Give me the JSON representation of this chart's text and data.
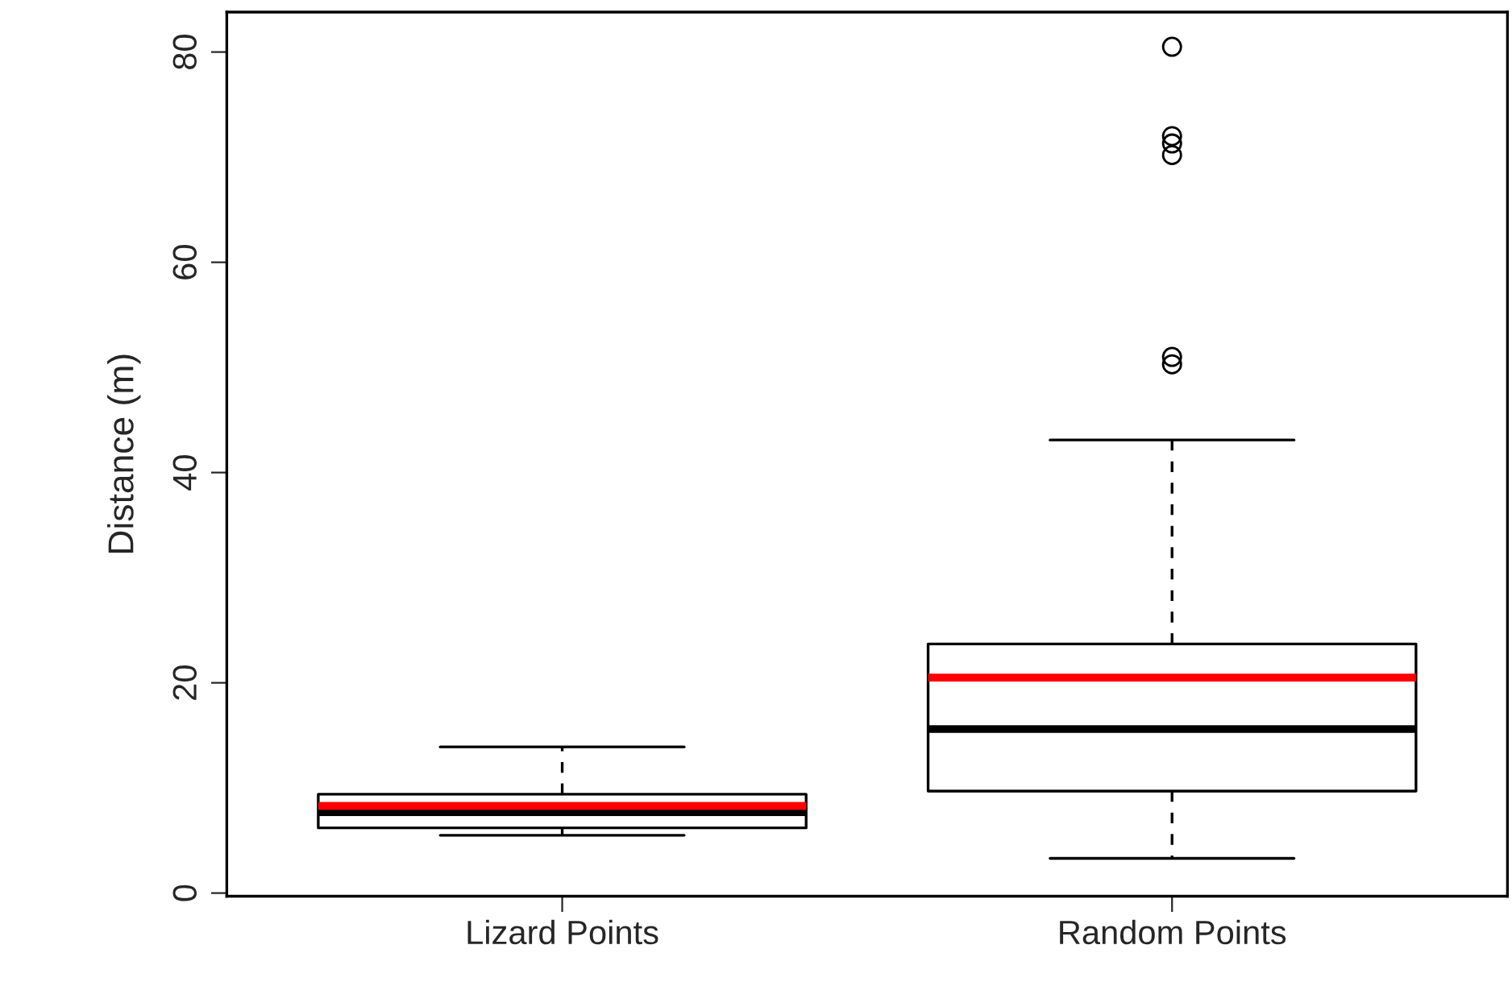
{
  "chart_data": {
    "type": "box",
    "ylabel": "Distance (m)",
    "categories": [
      "Lizard Points",
      "Random Points"
    ],
    "boxes": [
      {
        "low": 5.5,
        "q1": 6.2,
        "median": 7.7,
        "q3": 9.4,
        "high": 13.9,
        "mean": 8.3
      },
      {
        "low": 3.3,
        "q1": 9.7,
        "median": 15.6,
        "q3": 23.7,
        "high": 43.1,
        "mean": 20.5,
        "outliers": [
          50.3,
          51.0,
          70.2,
          71.3,
          72.0,
          80.5
        ]
      }
    ],
    "ylim": [
      -0.3,
      83.8
    ],
    "yticks": [
      0,
      20,
      40,
      60,
      80
    ],
    "grid": false
  }
}
